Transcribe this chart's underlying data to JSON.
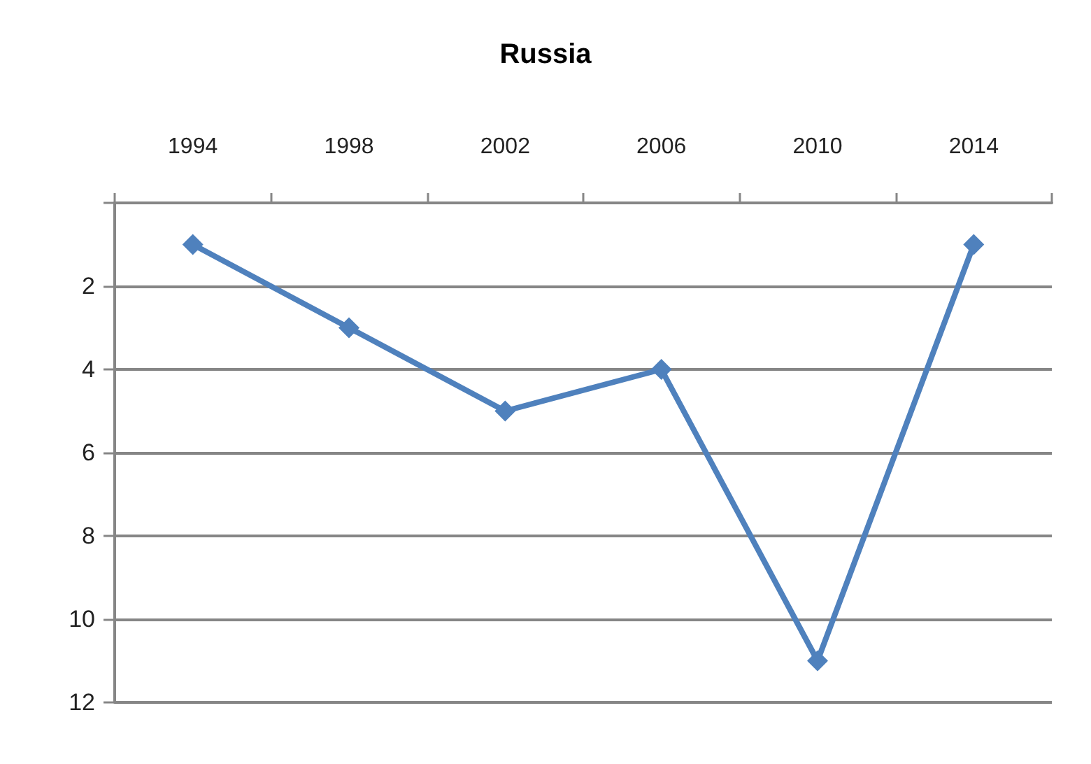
{
  "chart_data": {
    "type": "line",
    "title": "Russia",
    "categories": [
      "1994",
      "1998",
      "2002",
      "2006",
      "2010",
      "2014"
    ],
    "series": [
      {
        "color": "#4f81bd",
        "values": [
          1,
          3,
          5,
          4,
          11,
          1
        ]
      }
    ],
    "ylim": [
      12,
      0
    ],
    "yticks": [
      {
        "value": 0,
        "label": null
      },
      2,
      4,
      6,
      8,
      10,
      12
    ],
    "grid": "y",
    "marker": "diamond",
    "line_style": "solid"
  }
}
